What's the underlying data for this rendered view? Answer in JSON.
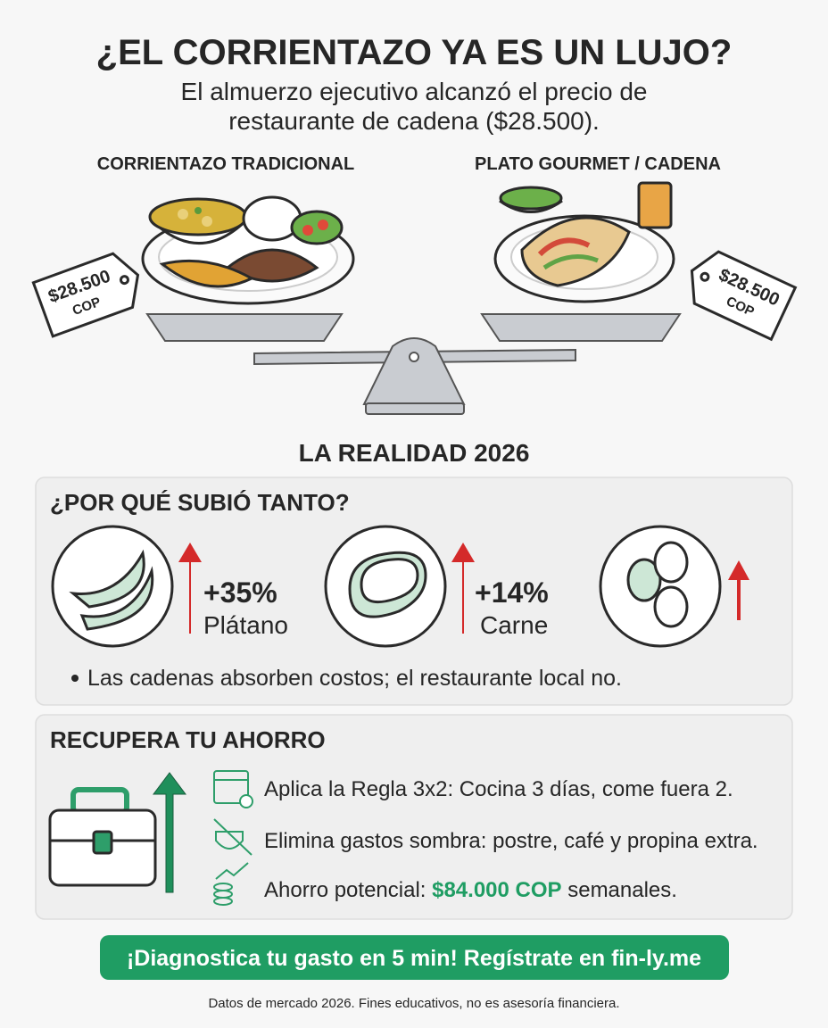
{
  "header": {
    "title": "¿EL CORRIENTAZO YA ES UN LUJO?",
    "subtitle_lines": [
      "El almuerzo ejecutivo alcanzó el precio de",
      "restaurante de cadena ($28.500)."
    ]
  },
  "comparison": {
    "left": {
      "label": "CORRIENTAZO TRADICIONAL",
      "price": "$28.500",
      "currency": "COP"
    },
    "right": {
      "label": "PLATO GOURMET / CADENA",
      "price": "$28.500",
      "currency": "COP"
    }
  },
  "reality_title": "LA REALIDAD 2026",
  "causes": {
    "title": "¿POR QUÉ SUBIÓ TANTO?",
    "items": [
      {
        "change": "+35%",
        "label": "Plátano"
      },
      {
        "change": "+14%",
        "label": "Carne"
      }
    ],
    "note": "Las cadenas absorben costos; el restaurante local no."
  },
  "savings": {
    "title": "RECUPERA TU AHORRO",
    "tips": [
      "Aplica la Regla 3x2: Cocina 3 días, come fuera 2.",
      "Elimina gastos sombra: postre, café y propina extra."
    ],
    "potential": {
      "prefix": "Ahorro potencial: ",
      "amount": "$84.000 COP",
      "suffix": " semanales."
    }
  },
  "cta": "¡Diagnostica tu gasto en 5 min! Regístrate en fin-ly.me",
  "footer": "Datos de mercado 2026. Fines educativos, no es asesoría financiera."
}
